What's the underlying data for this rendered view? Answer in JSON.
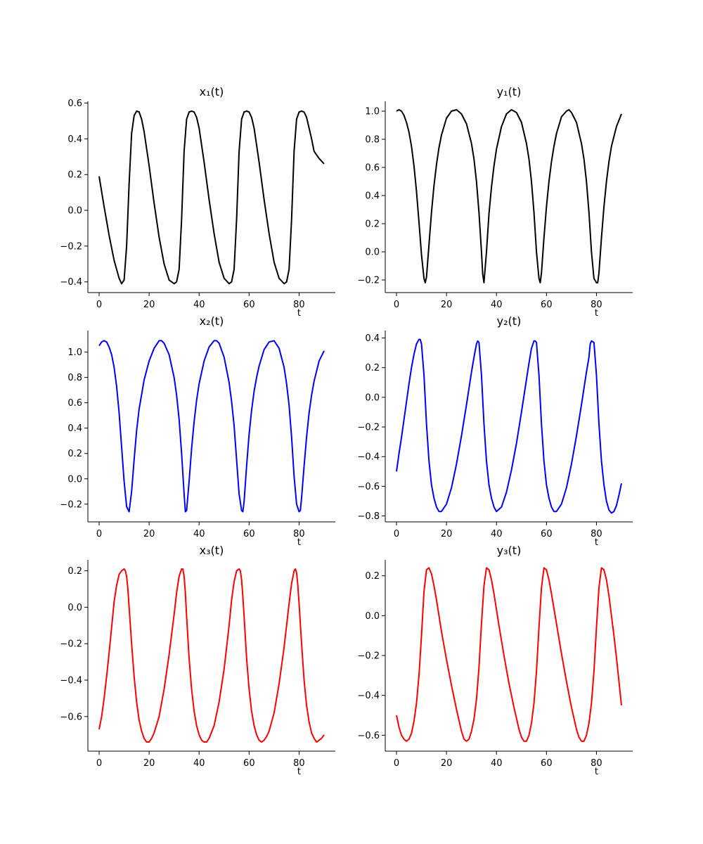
{
  "chart_data": [
    {
      "type": "line",
      "title": "x₁(t)",
      "xlabel": "t",
      "ylabel": "",
      "xlim": [
        -4.5,
        94.5
      ],
      "ylim": [
        -0.46,
        0.61
      ],
      "xticks": [
        "0",
        "20",
        "40",
        "60",
        "80"
      ],
      "yticks": [
        "−0.4",
        "−0.2",
        "0.0",
        "0.2",
        "0.4",
        "0.6"
      ],
      "color": "#000000",
      "series": [
        {
          "x": [
            0,
            2,
            4,
            6,
            8,
            9,
            10,
            11,
            12,
            13,
            14,
            15,
            16,
            17,
            18,
            20,
            22,
            24,
            26,
            28,
            30,
            31,
            32,
            33,
            34,
            35,
            36,
            37,
            38,
            39,
            40,
            42,
            44,
            46,
            48,
            50,
            52,
            53,
            54,
            55,
            56,
            57,
            58,
            59,
            60,
            61,
            62,
            64,
            66,
            68,
            70,
            72,
            74,
            75,
            76,
            77,
            78,
            79,
            80,
            81,
            82,
            83,
            84,
            85,
            86,
            88,
            90
          ],
          "y": [
            0.19,
            0.02,
            -0.14,
            -0.28,
            -0.38,
            -0.41,
            -0.39,
            -0.2,
            0.15,
            0.43,
            0.53,
            0.555,
            0.55,
            0.51,
            0.44,
            0.25,
            0.04,
            -0.15,
            -0.3,
            -0.39,
            -0.41,
            -0.4,
            -0.33,
            -0.05,
            0.33,
            0.51,
            0.55,
            0.555,
            0.55,
            0.52,
            0.46,
            0.27,
            0.06,
            -0.13,
            -0.29,
            -0.38,
            -0.41,
            -0.4,
            -0.33,
            -0.05,
            0.33,
            0.51,
            0.55,
            0.555,
            0.55,
            0.52,
            0.46,
            0.27,
            0.06,
            -0.13,
            -0.29,
            -0.38,
            -0.41,
            -0.4,
            -0.33,
            -0.05,
            0.33,
            0.51,
            0.55,
            0.555,
            0.55,
            0.52,
            0.46,
            0.4,
            0.33,
            0.29,
            0.26
          ]
        }
      ]
    },
    {
      "type": "line",
      "title": "y₁(t)",
      "xlabel": "t",
      "ylabel": "",
      "xlim": [
        -4.5,
        94.5
      ],
      "ylim": [
        -0.29,
        1.07
      ],
      "xticks": [
        "0",
        "20",
        "40",
        "60",
        "80"
      ],
      "yticks": [
        "−0.2",
        "0.0",
        "0.2",
        "0.4",
        "0.6",
        "0.8",
        "1.0"
      ],
      "color": "#000000",
      "series": [
        {
          "x": [
            0,
            1,
            2,
            3,
            4,
            5,
            6,
            7,
            8,
            9,
            10,
            11,
            11.5,
            12,
            13,
            14,
            15,
            16,
            17,
            18,
            20,
            22,
            24,
            26,
            28,
            30,
            31,
            32,
            33,
            34,
            34.5,
            35,
            36,
            37,
            38,
            39,
            40,
            42,
            44,
            46,
            48,
            50,
            52,
            53,
            54,
            55,
            56,
            57,
            57.5,
            58,
            59,
            60,
            61,
            62,
            63,
            64,
            66,
            68,
            69,
            70,
            72,
            74,
            75,
            76,
            77,
            78,
            79,
            80,
            80.5,
            81,
            82,
            83,
            84,
            85,
            86,
            88,
            90
          ],
          "y": [
            1.0,
            1.01,
            1.0,
            0.97,
            0.92,
            0.85,
            0.75,
            0.61,
            0.43,
            0.21,
            -0.02,
            -0.19,
            -0.22,
            -0.18,
            0.05,
            0.28,
            0.47,
            0.62,
            0.74,
            0.83,
            0.95,
            1.0,
            1.01,
            0.98,
            0.91,
            0.77,
            0.66,
            0.5,
            0.28,
            0.0,
            -0.16,
            -0.22,
            0.0,
            0.27,
            0.46,
            0.61,
            0.73,
            0.89,
            0.98,
            1.01,
            0.99,
            0.92,
            0.77,
            0.66,
            0.5,
            0.28,
            0.0,
            -0.19,
            -0.22,
            -0.15,
            0.1,
            0.32,
            0.5,
            0.64,
            0.75,
            0.84,
            0.96,
            1.0,
            1.01,
            0.99,
            0.92,
            0.77,
            0.66,
            0.5,
            0.28,
            0.0,
            -0.19,
            -0.22,
            -0.22,
            -0.15,
            0.1,
            0.32,
            0.5,
            0.64,
            0.75,
            0.89,
            0.98
          ]
        }
      ]
    },
    {
      "type": "line",
      "title": "x₂(t)",
      "xlabel": "t",
      "ylabel": "",
      "xlim": [
        -4.5,
        94.5
      ],
      "ylim": [
        -0.34,
        1.17
      ],
      "xticks": [
        "0",
        "20",
        "40",
        "60",
        "80"
      ],
      "yticks": [
        "−0.2",
        "0.0",
        "0.2",
        "0.4",
        "0.6",
        "0.8",
        "1.0"
      ],
      "color": "#0000ff",
      "series": [
        {
          "x": [
            0,
            1,
            2,
            3,
            4,
            5,
            6,
            7,
            8,
            9,
            10,
            11,
            12,
            13,
            14,
            15,
            16,
            18,
            20,
            22,
            24,
            25,
            26,
            28,
            30,
            31,
            32,
            33,
            34,
            34.5,
            35,
            36,
            37,
            38,
            39,
            40,
            42,
            44,
            46,
            47,
            48,
            50,
            52,
            53,
            54,
            55,
            56,
            57,
            57.5,
            58,
            59,
            60,
            61,
            62,
            63,
            64,
            66,
            68,
            70,
            72,
            74,
            75,
            76,
            77,
            78,
            79,
            80,
            80.5,
            81,
            82,
            83,
            84,
            85,
            86,
            88,
            90
          ],
          "y": [
            1.05,
            1.08,
            1.09,
            1.08,
            1.04,
            0.98,
            0.88,
            0.73,
            0.52,
            0.25,
            -0.02,
            -0.22,
            -0.26,
            -0.1,
            0.15,
            0.38,
            0.55,
            0.78,
            0.93,
            1.03,
            1.09,
            1.09,
            1.07,
            0.98,
            0.8,
            0.66,
            0.47,
            0.2,
            -0.12,
            -0.26,
            -0.25,
            -0.02,
            0.24,
            0.45,
            0.62,
            0.75,
            0.93,
            1.04,
            1.09,
            1.09,
            1.07,
            0.96,
            0.76,
            0.61,
            0.42,
            0.15,
            -0.12,
            -0.25,
            -0.26,
            -0.18,
            0.1,
            0.35,
            0.54,
            0.69,
            0.8,
            0.89,
            1.02,
            1.08,
            1.09,
            1.03,
            0.88,
            0.75,
            0.58,
            0.33,
            0.02,
            -0.2,
            -0.26,
            -0.25,
            -0.15,
            0.1,
            0.33,
            0.52,
            0.66,
            0.77,
            0.93,
            1.01
          ]
        }
      ]
    },
    {
      "type": "line",
      "title": "y₂(t)",
      "xlabel": "t",
      "ylabel": "",
      "xlim": [
        -4.5,
        94.5
      ],
      "ylim": [
        -0.84,
        0.45
      ],
      "xticks": [
        "0",
        "20",
        "40",
        "60",
        "80"
      ],
      "yticks": [
        "−0.8",
        "−0.6",
        "−0.4",
        "−0.2",
        "0.0",
        "0.2",
        "0.4"
      ],
      "color": "#0000ff",
      "series": [
        {
          "x": [
            0,
            1,
            2,
            3,
            4,
            5,
            6,
            7,
            8,
            9,
            9.5,
            10,
            11,
            12,
            13,
            14,
            15,
            16,
            17,
            18,
            20,
            22,
            24,
            26,
            28,
            30,
            31,
            32,
            32.5,
            33,
            34,
            35,
            36,
            37,
            38,
            39,
            40,
            42,
            44,
            46,
            48,
            50,
            52,
            53,
            54,
            55,
            55.5,
            56,
            57,
            58,
            59,
            60,
            61,
            62,
            63,
            64,
            66,
            68,
            70,
            72,
            74,
            76,
            77,
            77.5,
            78,
            79,
            80,
            81,
            82,
            83,
            84,
            85,
            86,
            87,
            88,
            89,
            90
          ],
          "y": [
            -0.5,
            -0.38,
            -0.27,
            -0.15,
            -0.03,
            0.09,
            0.2,
            0.29,
            0.36,
            0.39,
            0.39,
            0.36,
            0.15,
            -0.18,
            -0.43,
            -0.59,
            -0.68,
            -0.74,
            -0.77,
            -0.77,
            -0.72,
            -0.61,
            -0.45,
            -0.26,
            -0.05,
            0.17,
            0.27,
            0.36,
            0.38,
            0.37,
            0.15,
            -0.18,
            -0.43,
            -0.59,
            -0.68,
            -0.74,
            -0.77,
            -0.74,
            -0.64,
            -0.49,
            -0.31,
            -0.1,
            0.12,
            0.23,
            0.33,
            0.38,
            0.38,
            0.37,
            0.15,
            -0.18,
            -0.43,
            -0.59,
            -0.68,
            -0.74,
            -0.77,
            -0.77,
            -0.72,
            -0.61,
            -0.45,
            -0.26,
            -0.05,
            0.17,
            0.27,
            0.36,
            0.38,
            0.37,
            0.15,
            -0.18,
            -0.43,
            -0.59,
            -0.7,
            -0.76,
            -0.78,
            -0.77,
            -0.73,
            -0.66,
            -0.58
          ]
        }
      ]
    },
    {
      "type": "line",
      "title": "x₃(t)",
      "xlabel": "t",
      "ylabel": "",
      "xlim": [
        -4.5,
        94.5
      ],
      "ylim": [
        -0.79,
        0.26
      ],
      "xticks": [
        "0",
        "20",
        "40",
        "60",
        "80"
      ],
      "yticks": [
        "−0.6",
        "−0.4",
        "−0.2",
        "0.0",
        "0.2"
      ],
      "color": "#ff0000",
      "series": [
        {
          "x": [
            0,
            1,
            2,
            3,
            4,
            5,
            6,
            7,
            8,
            9,
            10,
            10.5,
            11,
            11.5,
            12,
            13,
            14,
            15,
            16,
            17,
            18,
            19,
            20,
            21,
            22,
            24,
            26,
            28,
            30,
            31,
            32,
            33,
            33.5,
            34,
            34.5,
            35,
            36,
            37,
            38,
            39,
            40,
            41,
            42,
            43,
            44,
            46,
            48,
            50,
            52,
            53,
            54,
            55,
            56,
            56.5,
            57,
            57.5,
            58,
            59,
            60,
            61,
            62,
            63,
            64,
            65,
            66,
            67,
            68,
            70,
            72,
            74,
            76,
            77,
            78,
            78.5,
            79,
            79.5,
            80,
            81,
            82,
            83,
            84,
            85,
            86,
            87,
            88,
            89,
            90
          ],
          "y": [
            -0.67,
            -0.6,
            -0.5,
            -0.38,
            -0.25,
            -0.11,
            0.03,
            0.12,
            0.18,
            0.2,
            0.21,
            0.2,
            0.17,
            0.1,
            0.0,
            -0.2,
            -0.38,
            -0.52,
            -0.62,
            -0.68,
            -0.72,
            -0.74,
            -0.74,
            -0.72,
            -0.69,
            -0.6,
            -0.45,
            -0.26,
            -0.04,
            0.08,
            0.17,
            0.21,
            0.21,
            0.17,
            0.08,
            -0.05,
            -0.28,
            -0.45,
            -0.57,
            -0.65,
            -0.7,
            -0.73,
            -0.74,
            -0.74,
            -0.72,
            -0.65,
            -0.52,
            -0.34,
            -0.1,
            0.04,
            0.14,
            0.2,
            0.21,
            0.2,
            0.15,
            0.06,
            -0.05,
            -0.28,
            -0.45,
            -0.57,
            -0.65,
            -0.7,
            -0.73,
            -0.74,
            -0.73,
            -0.71,
            -0.68,
            -0.58,
            -0.42,
            -0.22,
            0.02,
            0.13,
            0.2,
            0.21,
            0.19,
            0.12,
            0.02,
            -0.2,
            -0.4,
            -0.54,
            -0.63,
            -0.69,
            -0.72,
            -0.74,
            -0.73,
            -0.72,
            -0.7
          ]
        }
      ]
    },
    {
      "type": "line",
      "title": "y₃(t)",
      "xlabel": "t",
      "ylabel": "",
      "xlim": [
        -4.5,
        94.5
      ],
      "ylim": [
        -0.68,
        0.28
      ],
      "xticks": [
        "0",
        "20",
        "40",
        "60",
        "80"
      ],
      "yticks": [
        "−0.6",
        "−0.4",
        "−0.2",
        "0.0",
        "0.2"
      ],
      "color": "#ff0000",
      "series": [
        {
          "x": [
            0,
            1,
            2,
            3,
            4,
            5,
            6,
            7,
            8,
            9,
            10,
            11,
            12,
            13,
            14,
            15,
            16,
            18,
            20,
            22,
            24,
            26,
            27,
            28,
            29,
            30,
            31,
            32,
            33,
            34,
            35,
            36,
            37,
            38,
            39,
            41,
            43,
            45,
            47,
            49,
            50,
            51,
            52,
            53,
            54,
            55,
            56,
            57,
            58,
            59,
            60,
            61,
            62,
            64,
            66,
            68,
            70,
            72,
            73,
            74,
            75,
            76,
            77,
            78,
            79,
            80,
            81,
            82,
            83,
            84,
            85,
            86,
            87,
            88,
            89,
            90
          ],
          "y": [
            -0.5,
            -0.56,
            -0.6,
            -0.62,
            -0.63,
            -0.62,
            -0.59,
            -0.53,
            -0.44,
            -0.3,
            -0.1,
            0.12,
            0.23,
            0.24,
            0.21,
            0.15,
            0.08,
            -0.08,
            -0.22,
            -0.35,
            -0.47,
            -0.58,
            -0.62,
            -0.63,
            -0.62,
            -0.58,
            -0.52,
            -0.42,
            -0.26,
            -0.04,
            0.15,
            0.24,
            0.23,
            0.18,
            0.11,
            -0.05,
            -0.2,
            -0.34,
            -0.46,
            -0.57,
            -0.61,
            -0.63,
            -0.63,
            -0.6,
            -0.54,
            -0.44,
            -0.28,
            -0.06,
            0.14,
            0.24,
            0.23,
            0.18,
            0.11,
            -0.04,
            -0.19,
            -0.33,
            -0.46,
            -0.57,
            -0.61,
            -0.63,
            -0.63,
            -0.6,
            -0.54,
            -0.44,
            -0.28,
            -0.06,
            0.14,
            0.24,
            0.23,
            0.18,
            0.1,
            0.0,
            -0.1,
            -0.21,
            -0.33,
            -0.45
          ]
        }
      ]
    }
  ]
}
